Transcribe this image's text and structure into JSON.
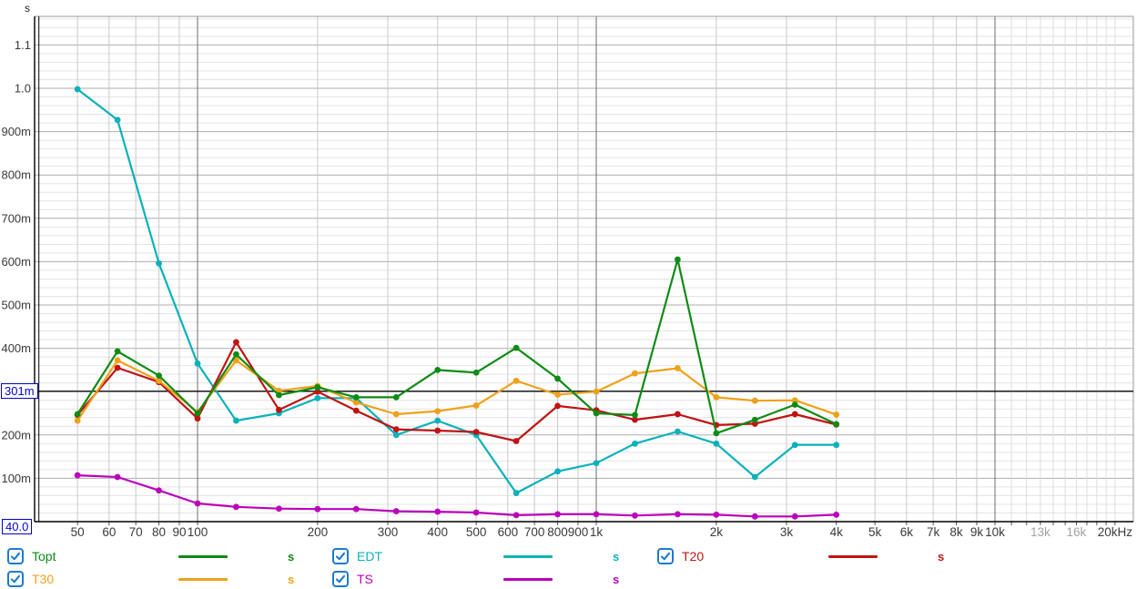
{
  "y_axis": {
    "unit": "s",
    "labels": [
      {
        "text": "1.1",
        "v": 1.1
      },
      {
        "text": "1.0",
        "v": 1.0
      },
      {
        "text": "900m",
        "v": 0.9
      },
      {
        "text": "800m",
        "v": 0.8
      },
      {
        "text": "700m",
        "v": 0.7
      },
      {
        "text": "600m",
        "v": 0.6
      },
      {
        "text": "500m",
        "v": 0.5
      },
      {
        "text": "400m",
        "v": 0.4
      },
      {
        "text": "200m",
        "v": 0.2
      },
      {
        "text": "100m",
        "v": 0.1
      }
    ]
  },
  "x_axis": {
    "labels": [
      {
        "text": "50",
        "f": 50,
        "gray": false
      },
      {
        "text": "60",
        "f": 60,
        "gray": false
      },
      {
        "text": "70",
        "f": 70,
        "gray": false
      },
      {
        "text": "80",
        "f": 80,
        "gray": false
      },
      {
        "text": "90",
        "f": 90,
        "gray": false
      },
      {
        "text": "100",
        "f": 100,
        "gray": false
      },
      {
        "text": "200",
        "f": 200,
        "gray": false
      },
      {
        "text": "300",
        "f": 300,
        "gray": false
      },
      {
        "text": "400",
        "f": 400,
        "gray": false
      },
      {
        "text": "500",
        "f": 500,
        "gray": false
      },
      {
        "text": "600",
        "f": 600,
        "gray": false
      },
      {
        "text": "700",
        "f": 700,
        "gray": false
      },
      {
        "text": "800",
        "f": 800,
        "gray": false
      },
      {
        "text": "900",
        "f": 900,
        "gray": false
      },
      {
        "text": "1k",
        "f": 1000,
        "gray": false
      },
      {
        "text": "2k",
        "f": 2000,
        "gray": false
      },
      {
        "text": "3k",
        "f": 3000,
        "gray": false
      },
      {
        "text": "4k",
        "f": 4000,
        "gray": false
      },
      {
        "text": "5k",
        "f": 5000,
        "gray": false
      },
      {
        "text": "6k",
        "f": 6000,
        "gray": false
      },
      {
        "text": "7k",
        "f": 7000,
        "gray": false
      },
      {
        "text": "8k",
        "f": 8000,
        "gray": false
      },
      {
        "text": "9k",
        "f": 9000,
        "gray": false
      },
      {
        "text": "10k",
        "f": 10000,
        "gray": false
      },
      {
        "text": "13k",
        "f": 13000,
        "gray": true
      },
      {
        "text": "16k",
        "f": 16000,
        "gray": true
      },
      {
        "text": "20kHz",
        "f": 20000,
        "gray": false
      }
    ]
  },
  "cursor": {
    "x_label": "40.0",
    "x_value": 40,
    "y_label": "301m",
    "y_value": 0.301
  },
  "chart_data": {
    "type": "line",
    "x_scale": "log",
    "x_range_hz": [
      40,
      21000
    ],
    "y_range_s": [
      0,
      1.166
    ],
    "y_unit": "s",
    "grid": true,
    "frequencies_hz": [
      50,
      63,
      80,
      100,
      125,
      160,
      200,
      250,
      315,
      400,
      500,
      630,
      800,
      1000,
      1250,
      1600,
      2000,
      2500,
      3150,
      4000
    ],
    "series": [
      {
        "name": "TS",
        "color": "#bb00bb",
        "unit": "s",
        "values": [
          0.107,
          0.103,
          0.072,
          0.042,
          0.034,
          0.03,
          0.029,
          0.029,
          0.024,
          0.023,
          0.021,
          0.015,
          0.017,
          0.017,
          0.014,
          0.017,
          0.016,
          0.012,
          0.012,
          0.016
        ]
      },
      {
        "name": "EDT",
        "color": "#0ab1bc",
        "unit": "s",
        "values": [
          0.998,
          0.927,
          0.596,
          0.365,
          0.233,
          0.25,
          0.285,
          0.285,
          0.2,
          0.233,
          0.2,
          0.066,
          0.116,
          0.135,
          0.18,
          0.208,
          0.18,
          0.103,
          0.177,
          0.177
        ]
      },
      {
        "name": "T20",
        "color": "#c01313",
        "unit": "s",
        "values": [
          0.246,
          0.355,
          0.322,
          0.238,
          0.414,
          0.258,
          0.3,
          0.256,
          0.213,
          0.21,
          0.207,
          0.186,
          0.267,
          0.257,
          0.235,
          0.248,
          0.223,
          0.226,
          0.248,
          0.224
        ]
      },
      {
        "name": "T30",
        "color": "#efa11a",
        "unit": "s",
        "values": [
          0.233,
          0.372,
          0.325,
          0.253,
          0.372,
          0.302,
          0.313,
          0.275,
          0.248,
          0.255,
          0.268,
          0.325,
          0.293,
          0.3,
          0.342,
          0.354,
          0.287,
          0.279,
          0.28,
          0.247
        ]
      },
      {
        "name": "Topt",
        "color": "#0e8b14",
        "unit": "s",
        "values": [
          0.248,
          0.393,
          0.337,
          0.25,
          0.386,
          0.292,
          0.31,
          0.287,
          0.287,
          0.35,
          0.344,
          0.401,
          0.33,
          0.25,
          0.246,
          0.605,
          0.204,
          0.235,
          0.27,
          0.225
        ]
      }
    ]
  },
  "legend": {
    "rows": [
      [
        {
          "label": "Topt",
          "unit": "s",
          "color": "#0e8b14",
          "checked": true
        },
        {
          "label": "EDT",
          "unit": "s",
          "color": "#0ab1bc",
          "checked": true
        },
        {
          "label": "T20",
          "unit": "s",
          "color": "#c01313",
          "checked": true
        }
      ],
      [
        {
          "label": "T30",
          "unit": "s",
          "color": "#efa11a",
          "checked": true
        },
        {
          "label": "TS",
          "unit": "s",
          "color": "#bb00bb",
          "checked": true
        }
      ]
    ]
  },
  "colors": {
    "checkbox_blue": "#1e7ad2",
    "cursor_blue": "#0004cc",
    "grid_minor": "#e4e4e4",
    "grid_major_h": "#aeaeae",
    "grid_v": "#c9c9c9",
    "grid_v_light": "#dedede",
    "grid_decade": "#6e6e6e",
    "axis": "#000000",
    "tick_text": "#3a3a3a",
    "tick_text_gray": "#a2a2a2"
  }
}
